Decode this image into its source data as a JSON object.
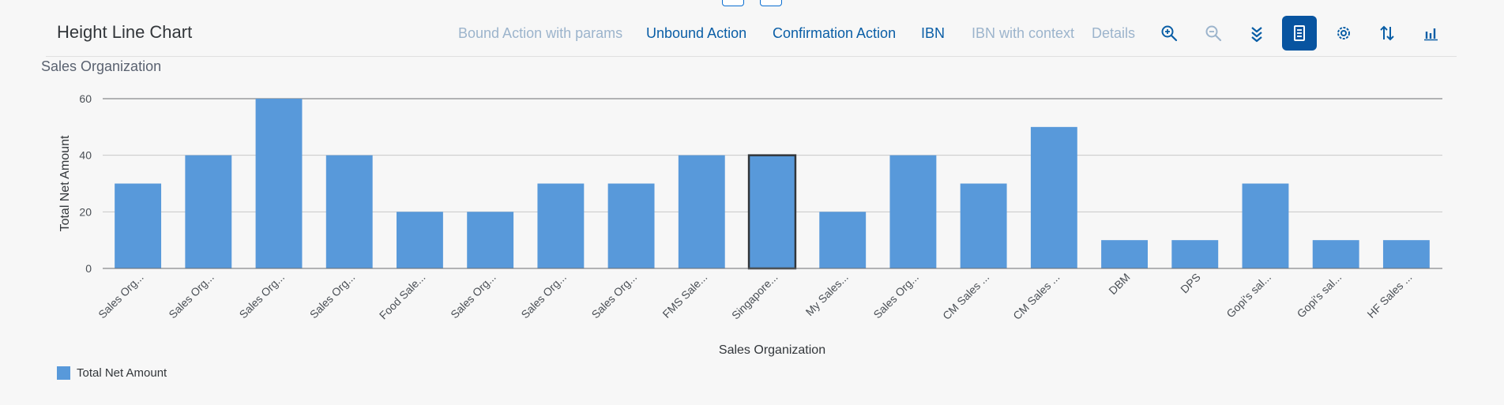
{
  "toolbar": {
    "title": "Height Line Chart",
    "actions": [
      {
        "label": "Bound Action with params",
        "enabled": false
      },
      {
        "label": "Unbound Action",
        "enabled": true
      },
      {
        "label": "Confirmation Action",
        "enabled": true
      },
      {
        "label": "IBN",
        "enabled": true
      },
      {
        "label": "IBN with context",
        "enabled": false
      },
      {
        "label": "Details",
        "enabled": false
      }
    ],
    "icons": [
      {
        "name": "zoom-in-icon",
        "enabled": true,
        "active": false
      },
      {
        "name": "zoom-out-icon",
        "enabled": false,
        "active": false
      },
      {
        "name": "drill-down-icon",
        "enabled": true,
        "active": false
      },
      {
        "name": "table-view-icon",
        "enabled": true,
        "active": true
      },
      {
        "name": "settings-icon",
        "enabled": true,
        "active": false
      },
      {
        "name": "sort-icon",
        "enabled": true,
        "active": false
      },
      {
        "name": "chart-type-icon",
        "enabled": true,
        "active": false
      }
    ]
  },
  "colors": {
    "bar": "#5899da",
    "accent": "#0854a0",
    "action_enabled": "#0a5ea6",
    "action_disabled": "#9cb4cc",
    "selected_outline": "#32363a"
  },
  "chart_data": {
    "type": "bar",
    "title": "Sales Organization",
    "xlabel": "Sales Organization",
    "ylabel": "Total Net Amount",
    "ylim": [
      0,
      60
    ],
    "yticks": [
      0,
      20,
      40,
      60
    ],
    "grid": true,
    "legend_position": "bottom-left",
    "categories": [
      "Sales Org...",
      "Sales Org...",
      "Sales Org...",
      "Sales Org...",
      "Food Sale...",
      "Sales Org...",
      "Sales Org...",
      "Sales Org...",
      "FMS Sale...",
      "Singapore...",
      "My Sales...",
      "Sales Org...",
      "CM Sales ...",
      "CM Sales ...",
      "DBM",
      "DPS",
      "Gopi's sal...",
      "Gopi's sal...",
      "HF Sales ..."
    ],
    "series": [
      {
        "name": "Total Net Amount",
        "values": [
          30,
          40,
          60,
          40,
          20,
          20,
          30,
          30,
          40,
          40,
          20,
          40,
          30,
          50,
          10,
          10,
          30,
          10,
          10
        ]
      }
    ],
    "selected_index": 9
  }
}
